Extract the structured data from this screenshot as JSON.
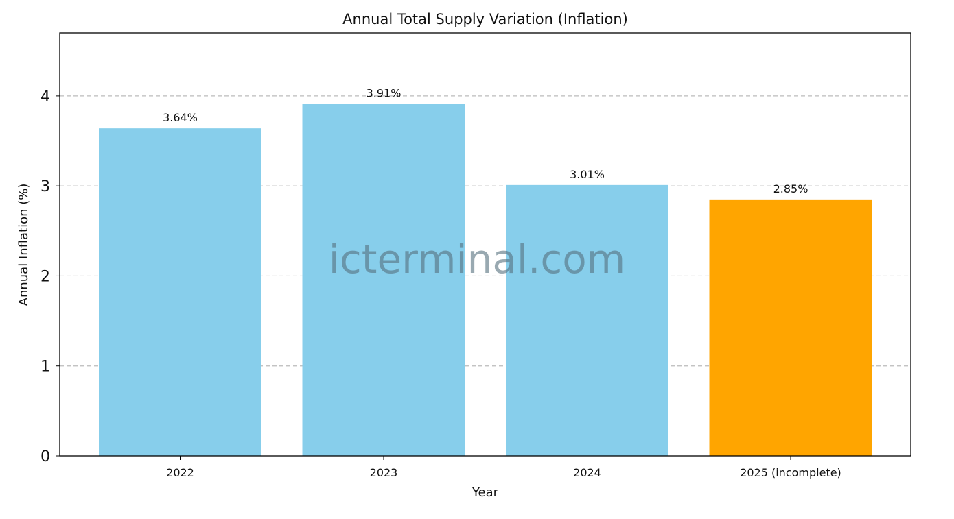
{
  "chart_data": {
    "type": "bar",
    "title": "Annual Total Supply Variation (Inflation)",
    "xlabel": "Year",
    "ylabel": "Annual Inflation (%)",
    "categories": [
      "2022",
      "2023",
      "2024",
      "2025 (incomplete)"
    ],
    "values": [
      3.64,
      3.91,
      3.01,
      2.85
    ],
    "data_labels": [
      "3.64%",
      "3.91%",
      "3.01%",
      "2.85%"
    ],
    "bar_colors": [
      "#87CEEB",
      "#87CEEB",
      "#87CEEB",
      "#FFA500"
    ],
    "ylim": [
      0,
      4.7
    ],
    "yticks": [
      0,
      1,
      2,
      3,
      4
    ],
    "ytick_labels": [
      "0",
      "1",
      "2",
      "3",
      "4"
    ],
    "grid": "y-dashed",
    "grid_color": "#bbbbbb",
    "watermark": "icterminal.com"
  }
}
